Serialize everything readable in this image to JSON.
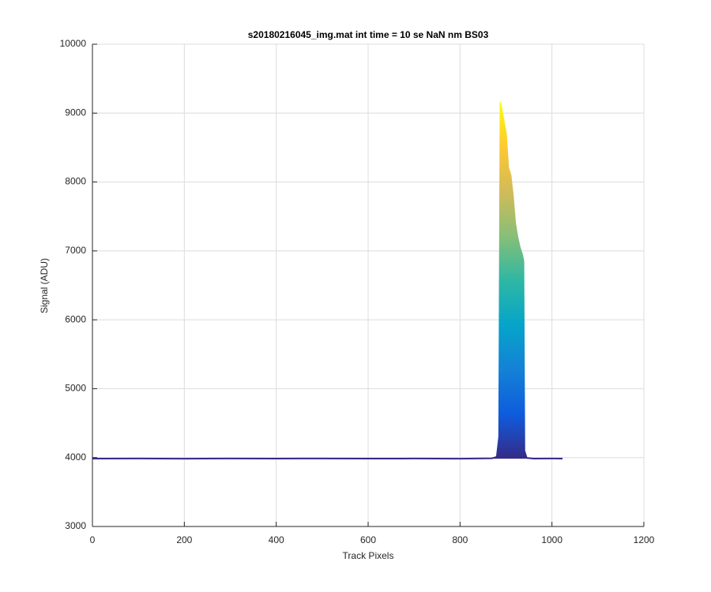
{
  "chart_data": {
    "type": "line",
    "title": "s20180216045_img.mat int time = 10 se  NaN nm BS03",
    "x_label": "Track Pixels",
    "y_label": "Signal (ADU)",
    "x": [
      0,
      100,
      200,
      300,
      400,
      500,
      600,
      700,
      800,
      870,
      880,
      885,
      888,
      892,
      900,
      905,
      910,
      915,
      920,
      925,
      930,
      935,
      938,
      940,
      945,
      960,
      1000,
      1023
    ],
    "series": [
      {
        "values": [
          3985,
          3987,
          3984,
          3986,
          3985,
          3987,
          3985,
          3986,
          3984,
          3990,
          4010,
          4300,
          9150,
          9000,
          8700,
          8200,
          8100,
          7800,
          7400,
          7200,
          7050,
          6950,
          6850,
          4100,
          3995,
          3985,
          3986,
          3985
        ]
      }
    ],
    "colormap": [
      "#352a87",
      "#0f5cdd",
      "#1481d6",
      "#06a4ca",
      "#2eb7a4",
      "#87bf77",
      "#d1bb59",
      "#fec832",
      "#f9fb0e"
    ],
    "xlim": [
      0,
      1200
    ],
    "xticks": [
      0,
      200,
      400,
      600,
      800,
      1000,
      1200
    ],
    "ylim": [
      3000,
      10000
    ],
    "yticks": [
      3000,
      4000,
      5000,
      6000,
      7000,
      8000,
      9000,
      10000
    ],
    "grid": true
  }
}
